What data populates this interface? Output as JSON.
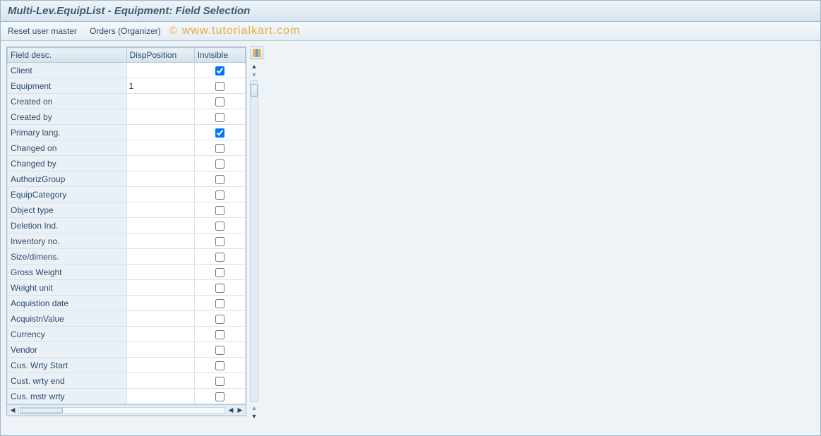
{
  "window": {
    "title": "Multi-Lev.EquipList - Equipment: Field Selection"
  },
  "toolbar": {
    "reset_label": "Reset user master",
    "orders_label": "Orders (Organizer)"
  },
  "watermark": {
    "text": "www.tutorialkart.com",
    "copy": "©"
  },
  "table": {
    "headers": {
      "desc": "Field desc.",
      "pos": "DispPosition",
      "inv": "Invisible"
    },
    "rows": [
      {
        "desc": "Client",
        "pos": "",
        "invisible": true
      },
      {
        "desc": "Equipment",
        "pos": "1",
        "invisible": false
      },
      {
        "desc": "Created on",
        "pos": "",
        "invisible": false
      },
      {
        "desc": "Created by",
        "pos": "",
        "invisible": false
      },
      {
        "desc": "Primary lang.",
        "pos": "",
        "invisible": true
      },
      {
        "desc": "Changed on",
        "pos": "",
        "invisible": false
      },
      {
        "desc": "Changed by",
        "pos": "",
        "invisible": false
      },
      {
        "desc": "AuthorizGroup",
        "pos": "",
        "invisible": false
      },
      {
        "desc": "EquipCategory",
        "pos": "",
        "invisible": false
      },
      {
        "desc": "Object type",
        "pos": "",
        "invisible": false
      },
      {
        "desc": "Deletion Ind.",
        "pos": "",
        "invisible": false
      },
      {
        "desc": "Inventory no.",
        "pos": "",
        "invisible": false
      },
      {
        "desc": "Size/dimens.",
        "pos": "",
        "invisible": false
      },
      {
        "desc": "Gross Weight",
        "pos": "",
        "invisible": false
      },
      {
        "desc": "Weight unit",
        "pos": "",
        "invisible": false
      },
      {
        "desc": "Acquistion date",
        "pos": "",
        "invisible": false
      },
      {
        "desc": "AcquistnValue",
        "pos": "",
        "invisible": false
      },
      {
        "desc": "Currency",
        "pos": "",
        "invisible": false
      },
      {
        "desc": "Vendor",
        "pos": "",
        "invisible": false
      },
      {
        "desc": "Cus. Wrty Start",
        "pos": "",
        "invisible": false
      },
      {
        "desc": "Cust. wrty end",
        "pos": "",
        "invisible": false
      },
      {
        "desc": "Cus. mstr wrty",
        "pos": "",
        "invisible": false
      }
    ]
  },
  "colors": {
    "header_bg_top": "#eef4f9",
    "header_bg_bot": "#d6e4ef",
    "border": "#9fb6c8",
    "row_label_bg": "#e9f1f7",
    "text": "#2f4b69",
    "watermark": "#e6a52b"
  }
}
